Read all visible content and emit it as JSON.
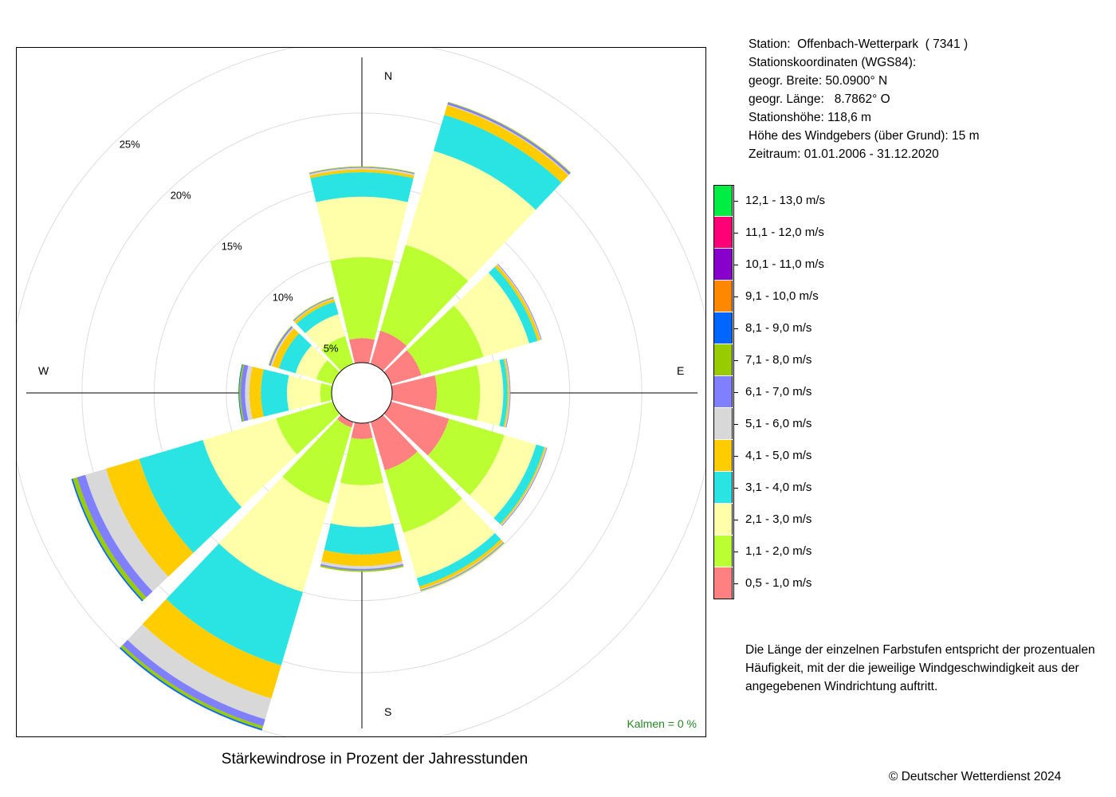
{
  "info": {
    "station": "Station:  Offenbach-Wetterpark  ( 7341 )",
    "coords_title": "Stationskoordinaten (WGS84):",
    "lat": "geogr. Breite: 50.0900° N",
    "lon": "geogr. Länge:   8.7862° O",
    "elevation": "Stationshöhe: 118,6 m",
    "anemometer": "Höhe des Windgebers (über Grund): 15 m",
    "period": "Zeitraum: 01.01.2006 - 31.12.2020"
  },
  "legend": [
    {
      "label": "12,1 - 13,0 m/s",
      "color": "#00ee44"
    },
    {
      "label": "11,1 - 12,0 m/s",
      "color": "#ff0077"
    },
    {
      "label": "10,1 - 11,0 m/s",
      "color": "#8800cc"
    },
    {
      "label": "9,1 - 10,0 m/s",
      "color": "#ff8800"
    },
    {
      "label": "8,1 - 9,0 m/s",
      "color": "#0066ff"
    },
    {
      "label": "7,1 - 8,0 m/s",
      "color": "#99cc00"
    },
    {
      "label": "6,1 - 7,0 m/s",
      "color": "#8080ff"
    },
    {
      "label": "5,1 - 6,0 m/s",
      "color": "#d8d8d8"
    },
    {
      "label": "4,1 - 5,0 m/s",
      "color": "#ffcc00"
    },
    {
      "label": "3,1 - 4,0 m/s",
      "color": "#2ae4e4"
    },
    {
      "label": "2,1 - 3,0 m/s",
      "color": "#ffffaa"
    },
    {
      "label": "1,1 - 2,0 m/s",
      "color": "#bbff33"
    },
    {
      "label": "0,5 - 1,0 m/s",
      "color": "#ff8080"
    }
  ],
  "note": "Die Länge der einzelnen Farbstufen entspricht der prozentualen Häufigkeit, mit der die jeweilige Windgeschwindigkeit aus der angegebenen Windrichtung auftritt.",
  "title": "Stärkewindrose in Prozent der Jahresstunden",
  "copyright": "© Deutscher Wetterdienst  2024",
  "chart_data": {
    "type": "polar-bar",
    "title": "Stärkewindrose in Prozent der Jahresstunden",
    "directions_deg": [
      0,
      30,
      60,
      90,
      120,
      150,
      180,
      210,
      240,
      270,
      300,
      330
    ],
    "cardinal_labels": {
      "N": "N",
      "E": "E",
      "S": "S",
      "W": "W"
    },
    "radial_ticks": [
      5,
      10,
      15,
      20,
      25
    ],
    "radial_tick_labels": [
      "5%",
      "10%",
      "15%",
      "20%",
      "25%"
    ],
    "radial_max": 25,
    "inner_hole_percent": 2.7,
    "calm_label": "Kalmen  =  0 %",
    "speed_classes": [
      "0,5 - 1,0 m/s",
      "1,1 - 2,0 m/s",
      "2,1 - 3,0 m/s",
      "3,1 - 4,0 m/s",
      "4,1 - 5,0 m/s",
      "5,1 - 6,0 m/s",
      "6,1 - 7,0 m/s",
      "7,1 - 8,0 m/s",
      "8,1 - 9,0 m/s",
      "9,1 - 10,0 m/s",
      "10,1 - 11,0 m/s",
      "11,1 - 12,0 m/s",
      "12,1 - 13,0 m/s"
    ],
    "cumulative_percent": [
      {
        "dir": 0,
        "values": [
          4.4,
          10.0,
          14.2,
          15.9,
          16.1,
          16.2,
          16.25,
          16.3,
          16.3,
          16.3,
          16.3,
          16.3,
          16.3
        ]
      },
      {
        "dir": 30,
        "values": [
          5.1,
          11.3,
          18.1,
          20.7,
          21.4,
          21.45,
          21.6,
          21.65,
          21.65,
          21.65,
          21.65,
          21.65,
          21.65
        ]
      },
      {
        "dir": 60,
        "values": [
          4.9,
          9.4,
          12.7,
          13.3,
          13.5,
          13.55,
          13.6,
          13.6,
          13.6,
          13.6,
          13.6,
          13.6,
          13.6
        ]
      },
      {
        "dir": 90,
        "values": [
          5.8,
          8.8,
          10.4,
          10.7,
          10.8,
          10.85,
          10.9,
          10.9,
          10.9,
          10.9,
          10.9,
          10.9,
          10.9
        ]
      },
      {
        "dir": 120,
        "values": [
          6.9,
          10.9,
          13.2,
          13.8,
          13.9,
          13.95,
          14.0,
          14.0,
          14.0,
          14.0,
          14.0,
          14.0,
          14.0
        ]
      },
      {
        "dir": 150,
        "values": [
          6.2,
          10.7,
          14.0,
          14.6,
          14.8,
          14.85,
          14.9,
          14.95,
          14.95,
          14.95,
          14.95,
          14.95,
          14.95
        ]
      },
      {
        "dir": 180,
        "values": [
          3.8,
          7.0,
          9.9,
          11.8,
          12.6,
          12.8,
          12.9,
          13.0,
          13.0,
          13.0,
          13.0,
          13.0,
          13.0
        ]
      },
      {
        "dir": 210,
        "values": [
          3.1,
          8.6,
          15.0,
          20.3,
          22.7,
          24.2,
          24.7,
          24.9,
          25.0,
          25.0,
          25.0,
          25.0,
          25.0
        ]
      },
      {
        "dir": 240,
        "values": [
          2.6,
          6.8,
          12.1,
          16.7,
          19.1,
          20.6,
          21.2,
          21.5,
          21.6,
          21.6,
          21.6,
          21.6,
          21.6
        ]
      },
      {
        "dir": 270,
        "values": [
          2.1,
          3.5,
          5.8,
          7.6,
          8.4,
          8.7,
          9.0,
          9.1,
          9.15,
          9.15,
          9.15,
          9.15,
          9.15
        ]
      },
      {
        "dir": 300,
        "values": [
          2.2,
          3.9,
          5.4,
          6.6,
          7.1,
          7.2,
          7.3,
          7.35,
          7.35,
          7.35,
          7.35,
          7.35,
          7.35
        ]
      },
      {
        "dir": 330,
        "values": [
          2.6,
          4.7,
          6.3,
          7.2,
          7.4,
          7.45,
          7.5,
          7.55,
          7.55,
          7.55,
          7.55,
          7.55,
          7.55
        ]
      }
    ]
  }
}
